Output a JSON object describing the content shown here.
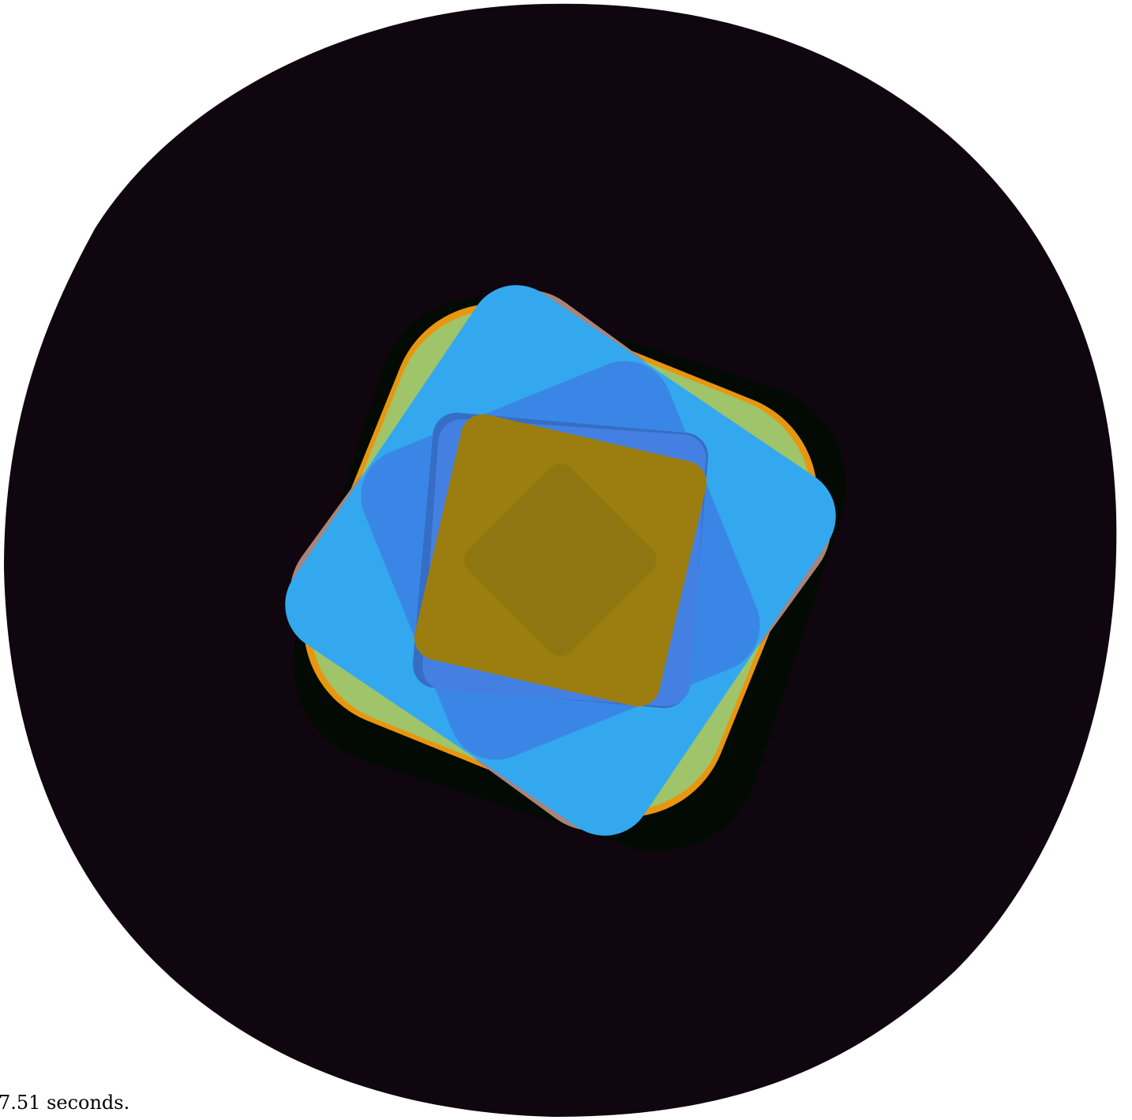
{
  "caption": "7.51 seconds."
}
